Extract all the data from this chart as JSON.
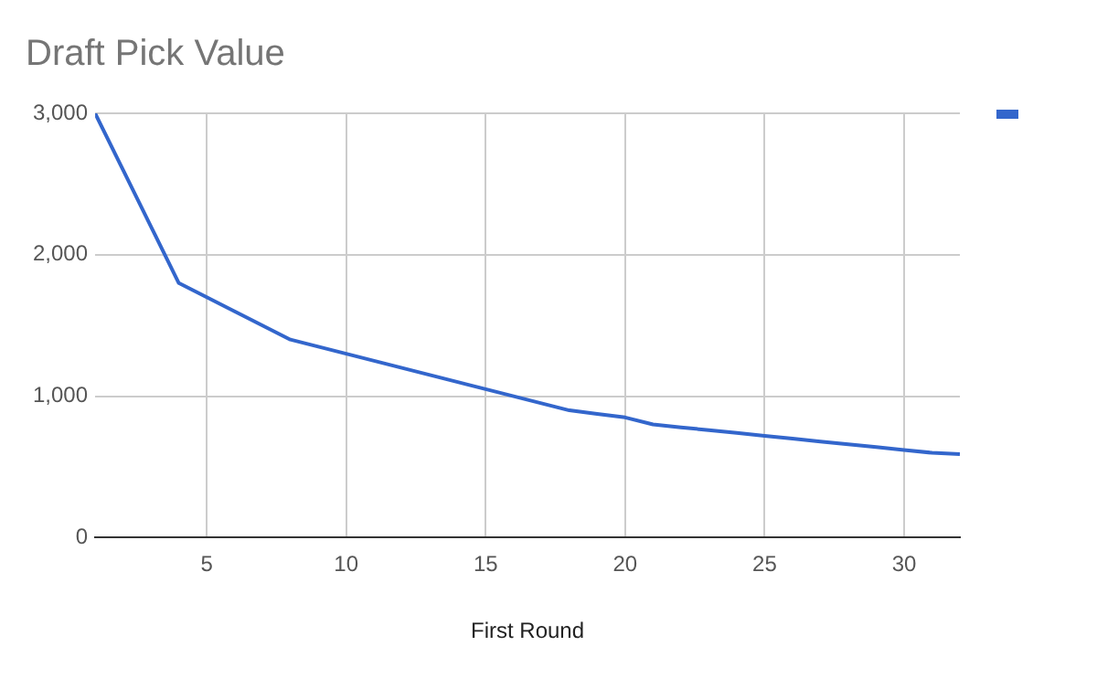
{
  "chart_data": {
    "type": "line",
    "title": "Draft Pick Value",
    "xlabel": "First Round",
    "x": [
      1,
      2,
      3,
      4,
      5,
      6,
      7,
      8,
      9,
      10,
      11,
      12,
      13,
      14,
      15,
      16,
      17,
      18,
      19,
      20,
      21,
      22,
      23,
      24,
      25,
      26,
      27,
      28,
      29,
      30,
      31,
      32
    ],
    "series": [
      {
        "color": "#3366cc",
        "values": [
          3000,
          2600,
          2200,
          1800,
          1700,
          1600,
          1500,
          1400,
          1350,
          1300,
          1250,
          1200,
          1150,
          1100,
          1050,
          1000,
          950,
          900,
          875,
          850,
          800,
          780,
          760,
          740,
          720,
          700,
          680,
          660,
          640,
          620,
          600,
          590
        ]
      }
    ],
    "xlim": [
      1,
      32
    ],
    "xticks": [
      5,
      10,
      15,
      20,
      25,
      30
    ],
    "ylim": [
      0,
      3000
    ],
    "yticks": [
      0,
      {
        "value": 1000,
        "label": "1,000"
      },
      {
        "value": 2000,
        "label": "2,000"
      },
      {
        "value": 3000,
        "label": "3,000"
      }
    ],
    "grid": true,
    "marker": "none",
    "line_style": "solid"
  }
}
